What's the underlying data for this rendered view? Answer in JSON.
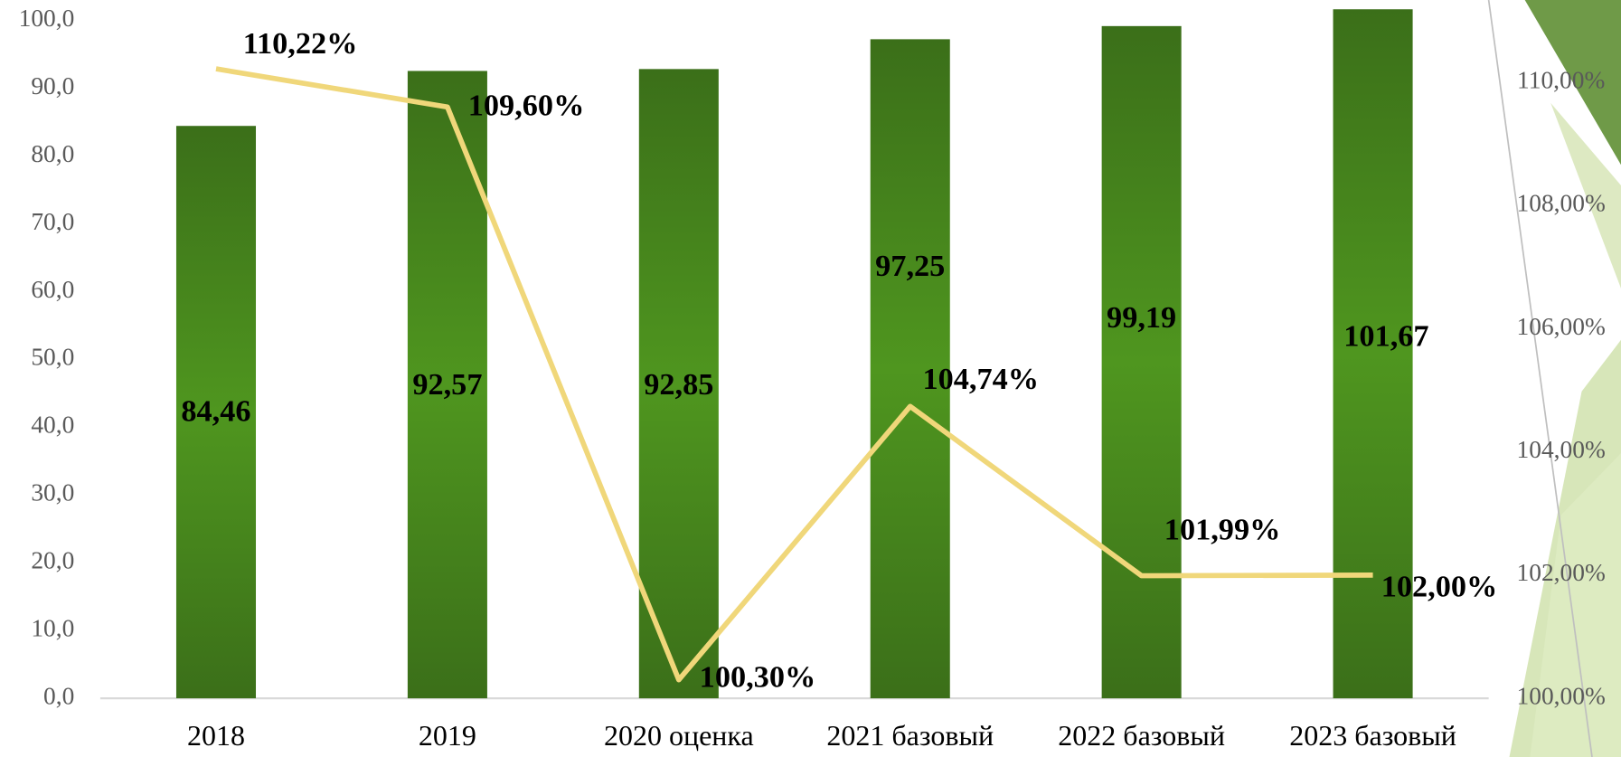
{
  "chart_data": {
    "type": "bar",
    "categories": [
      "2018",
      "2019",
      "2020 оценка",
      "2021 базовый",
      "2022 базовый",
      "2023 базовый"
    ],
    "ylim": [
      0,
      100
    ],
    "yticks": [
      {
        "value": 0,
        "label": "0,0"
      },
      {
        "value": 10,
        "label": "10,0"
      },
      {
        "value": 20,
        "label": "20,0"
      },
      {
        "value": 30,
        "label": "30,0"
      },
      {
        "value": 40,
        "label": "40,0"
      },
      {
        "value": 50,
        "label": "50,0"
      },
      {
        "value": 60,
        "label": "60,0"
      },
      {
        "value": 70,
        "label": "70,0"
      },
      {
        "value": 80,
        "label": "80,0"
      },
      {
        "value": 90,
        "label": "90,0"
      },
      {
        "value": 100,
        "label": "100,0"
      }
    ],
    "y2lim": [
      100,
      110
    ],
    "y2ticks": [
      {
        "value": 100,
        "label": "100,00%"
      },
      {
        "value": 102,
        "label": "102,00%"
      },
      {
        "value": 104,
        "label": "104,00%"
      },
      {
        "value": 106,
        "label": "106,00%"
      },
      {
        "value": 108,
        "label": "108,00%"
      },
      {
        "value": 110,
        "label": "110,00%"
      }
    ],
    "series": [
      {
        "type": "bar",
        "color": "#4a8a1e",
        "values": [
          84.46,
          92.57,
          92.85,
          97.25,
          99.19,
          101.67
        ],
        "value_labels": [
          "84,46",
          "92,57",
          "92,85",
          "97,25",
          "99,19",
          "101,67"
        ]
      },
      {
        "type": "line",
        "axis": "y2",
        "color": "#f0d77a",
        "values": [
          110.22,
          109.6,
          100.3,
          104.74,
          101.99,
          102.0
        ],
        "value_labels": [
          "110,22%",
          "109,60%",
          "100,30%",
          "104,74%",
          "101,99%",
          "102,00%"
        ]
      }
    ]
  }
}
